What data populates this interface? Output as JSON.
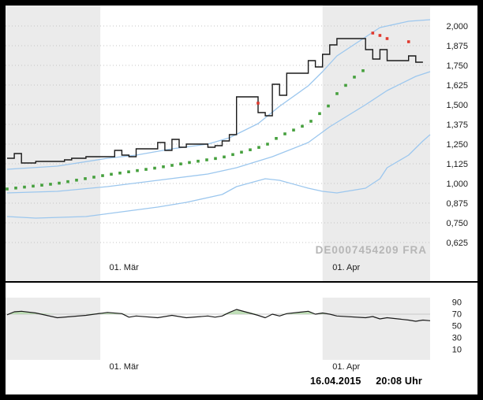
{
  "window": {
    "frame_color": "#000000",
    "background": "#ffffff"
  },
  "footer": {
    "date": "16.04.2015",
    "time": "20:08 Uhr"
  },
  "colors": {
    "month_band": "#ebebeb",
    "gridline": "#c6c6c6",
    "axis_text": "#1a1a1a",
    "watermark_text": "#b6b6b6",
    "threshold_line": "#c9c9c9"
  },
  "chart_data": [
    {
      "type": "line",
      "name": "price-panel",
      "title": "",
      "ylabel": "",
      "x_domain": [
        "2015-02-16",
        "2015-04-16"
      ],
      "x_tick_labels": [
        {
          "date": "2015-03-01",
          "label": "01. Mär"
        },
        {
          "date": "2015-04-01",
          "label": "01. Apr"
        }
      ],
      "y_ticks": [
        {
          "label": "2,000",
          "value": 2.0
        },
        {
          "label": "1,875",
          "value": 1.875
        },
        {
          "label": "1,750",
          "value": 1.75
        },
        {
          "label": "1,625",
          "value": 1.625
        },
        {
          "label": "1,500",
          "value": 1.5
        },
        {
          "label": "1,375",
          "value": 1.375
        },
        {
          "label": "1,250",
          "value": 1.25
        },
        {
          "label": "1,125",
          "value": 1.125
        },
        {
          "label": "1,000",
          "value": 1.0
        },
        {
          "label": "0,875",
          "value": 0.875
        },
        {
          "label": "0,750",
          "value": 0.75
        },
        {
          "label": "0,625",
          "value": 0.625
        }
      ],
      "month_bands": [
        {
          "from": "2015-02-16",
          "to": "2015-03-01"
        },
        {
          "from": "2015-04-01",
          "to": "2015-04-16"
        }
      ],
      "watermark": "DE0007454209 FRA",
      "series": [
        {
          "name": "bollinger-upper",
          "type": "line",
          "color": "#9cc7ee",
          "points": [
            [
              "2015-02-16",
              1.09
            ],
            [
              "2015-02-23",
              1.11
            ],
            [
              "2015-03-02",
              1.16
            ],
            [
              "2015-03-06",
              1.18
            ],
            [
              "2015-03-11",
              1.22
            ],
            [
              "2015-03-16",
              1.25
            ],
            [
              "2015-03-19",
              1.29
            ],
            [
              "2015-03-23",
              1.38
            ],
            [
              "2015-03-26",
              1.49
            ],
            [
              "2015-03-30",
              1.62
            ],
            [
              "2015-04-01",
              1.71
            ],
            [
              "2015-04-03",
              1.81
            ],
            [
              "2015-04-07",
              1.93
            ],
            [
              "2015-04-09",
              1.99
            ],
            [
              "2015-04-13",
              2.03
            ],
            [
              "2015-04-16",
              2.04
            ]
          ]
        },
        {
          "name": "bollinger-middle",
          "type": "line",
          "color": "#9cc7ee",
          "points": [
            [
              "2015-02-16",
              0.94
            ],
            [
              "2015-02-23",
              0.95
            ],
            [
              "2015-03-02",
              0.98
            ],
            [
              "2015-03-09",
              1.02
            ],
            [
              "2015-03-16",
              1.06
            ],
            [
              "2015-03-20",
              1.1
            ],
            [
              "2015-03-25",
              1.17
            ],
            [
              "2015-03-30",
              1.26
            ],
            [
              "2015-04-02",
              1.36
            ],
            [
              "2015-04-07",
              1.5
            ],
            [
              "2015-04-10",
              1.59
            ],
            [
              "2015-04-14",
              1.68
            ],
            [
              "2015-04-16",
              1.71
            ]
          ]
        },
        {
          "name": "bollinger-lower",
          "type": "line",
          "color": "#9cc7ee",
          "points": [
            [
              "2015-02-16",
              0.79
            ],
            [
              "2015-02-20",
              0.78
            ],
            [
              "2015-02-27",
              0.79
            ],
            [
              "2015-03-04",
              0.82
            ],
            [
              "2015-03-09",
              0.85
            ],
            [
              "2015-03-13",
              0.88
            ],
            [
              "2015-03-18",
              0.93
            ],
            [
              "2015-03-20",
              0.98
            ],
            [
              "2015-03-24",
              1.03
            ],
            [
              "2015-03-26",
              1.02
            ],
            [
              "2015-03-30",
              0.97
            ],
            [
              "2015-04-01",
              0.95
            ],
            [
              "2015-04-03",
              0.94
            ],
            [
              "2015-04-07",
              0.97
            ],
            [
              "2015-04-09",
              1.03
            ],
            [
              "2015-04-10",
              1.1
            ],
            [
              "2015-04-13",
              1.18
            ],
            [
              "2015-04-15",
              1.27
            ],
            [
              "2015-04-16",
              1.31
            ]
          ]
        },
        {
          "name": "ma-dotted",
          "type": "dotted",
          "color": "#45a03d",
          "points": [
            [
              "2015-02-16",
              0.965
            ],
            [
              "2015-02-23",
              1.0
            ],
            [
              "2015-03-02",
              1.055
            ],
            [
              "2015-03-09",
              1.1
            ],
            [
              "2015-03-13",
              1.13
            ],
            [
              "2015-03-18",
              1.165
            ],
            [
              "2015-03-20",
              1.19
            ],
            [
              "2015-03-24",
              1.24
            ],
            [
              "2015-03-26",
              1.3
            ],
            [
              "2015-03-30",
              1.38
            ],
            [
              "2015-03-31",
              1.42
            ],
            [
              "2015-04-02",
              1.5
            ],
            [
              "2015-04-03",
              1.57
            ],
            [
              "2015-04-06",
              1.7
            ],
            [
              "2015-04-07",
              1.725
            ]
          ]
        },
        {
          "name": "price",
          "type": "step",
          "color": "#1a1a1a",
          "points": [
            [
              "2015-02-16",
              1.16
            ],
            [
              "2015-02-17",
              1.19
            ],
            [
              "2015-02-18",
              1.13
            ],
            [
              "2015-02-19",
              1.13
            ],
            [
              "2015-02-20",
              1.14
            ],
            [
              "2015-02-23",
              1.14
            ],
            [
              "2015-02-24",
              1.15
            ],
            [
              "2015-02-25",
              1.16
            ],
            [
              "2015-02-26",
              1.16
            ],
            [
              "2015-02-27",
              1.17
            ],
            [
              "2015-03-02",
              1.17
            ],
            [
              "2015-03-03",
              1.21
            ],
            [
              "2015-03-04",
              1.18
            ],
            [
              "2015-03-05",
              1.17
            ],
            [
              "2015-03-06",
              1.22
            ],
            [
              "2015-03-09",
              1.26
            ],
            [
              "2015-03-10",
              1.21
            ],
            [
              "2015-03-11",
              1.28
            ],
            [
              "2015-03-12",
              1.23
            ],
            [
              "2015-03-13",
              1.25
            ],
            [
              "2015-03-16",
              1.23
            ],
            [
              "2015-03-17",
              1.24
            ],
            [
              "2015-03-18",
              1.27
            ],
            [
              "2015-03-19",
              1.31
            ],
            [
              "2015-03-20",
              1.55
            ],
            [
              "2015-03-23",
              1.45
            ],
            [
              "2015-03-24",
              1.43
            ],
            [
              "2015-03-25",
              1.63
            ],
            [
              "2015-03-26",
              1.56
            ],
            [
              "2015-03-27",
              1.7
            ],
            [
              "2015-03-30",
              1.78
            ],
            [
              "2015-03-31",
              1.74
            ],
            [
              "2015-04-01",
              1.82
            ],
            [
              "2015-04-02",
              1.88
            ],
            [
              "2015-04-03",
              1.92
            ],
            [
              "2015-04-07",
              1.85
            ],
            [
              "2015-04-08",
              1.79
            ],
            [
              "2015-04-09",
              1.85
            ],
            [
              "2015-04-10",
              1.78
            ],
            [
              "2015-04-13",
              1.81
            ],
            [
              "2015-04-14",
              1.77
            ],
            [
              "2015-04-15",
              1.77
            ]
          ]
        },
        {
          "name": "signal-dots",
          "type": "markers",
          "color": "#e03a2f",
          "points": [
            [
              "2015-03-23",
              1.51
            ],
            [
              "2015-04-08",
              1.955
            ],
            [
              "2015-04-09",
              1.94
            ],
            [
              "2015-04-10",
              1.92
            ],
            [
              "2015-04-13",
              1.9
            ]
          ]
        }
      ]
    },
    {
      "type": "line",
      "name": "indicator-panel",
      "title": "",
      "x_domain": [
        "2015-02-16",
        "2015-04-16"
      ],
      "x_tick_labels": [
        {
          "date": "2015-03-01",
          "label": "01. Mär"
        },
        {
          "date": "2015-04-01",
          "label": "01. Apr"
        }
      ],
      "y_ticks": [
        {
          "label": "90",
          "value": 90
        },
        {
          "label": "70",
          "value": 70
        },
        {
          "label": "50",
          "value": 50
        },
        {
          "label": "30",
          "value": 30
        },
        {
          "label": "10",
          "value": 10
        }
      ],
      "month_bands": [
        {
          "from": "2015-02-16",
          "to": "2015-03-01"
        },
        {
          "from": "2015-04-01",
          "to": "2015-04-16"
        }
      ],
      "threshold": 70,
      "series": [
        {
          "name": "momentum",
          "type": "area-line",
          "color": "#1a1a1a",
          "fill": "#b9dcb0",
          "points": [
            [
              "2015-02-16",
              69
            ],
            [
              "2015-02-17",
              74
            ],
            [
              "2015-02-18",
              75
            ],
            [
              "2015-02-20",
              72
            ],
            [
              "2015-02-23",
              64
            ],
            [
              "2015-02-25",
              66
            ],
            [
              "2015-02-27",
              68
            ],
            [
              "2015-03-02",
              73
            ],
            [
              "2015-03-04",
              71
            ],
            [
              "2015-03-05",
              65
            ],
            [
              "2015-03-06",
              67
            ],
            [
              "2015-03-09",
              64
            ],
            [
              "2015-03-11",
              68
            ],
            [
              "2015-03-12",
              66
            ],
            [
              "2015-03-13",
              64
            ],
            [
              "2015-03-16",
              67
            ],
            [
              "2015-03-17",
              65
            ],
            [
              "2015-03-18",
              67
            ],
            [
              "2015-03-19",
              73
            ],
            [
              "2015-03-20",
              78
            ],
            [
              "2015-03-23",
              68
            ],
            [
              "2015-03-24",
              64
            ],
            [
              "2015-03-25",
              70
            ],
            [
              "2015-03-26",
              67
            ],
            [
              "2015-03-27",
              71
            ],
            [
              "2015-03-30",
              75
            ],
            [
              "2015-03-31",
              70
            ],
            [
              "2015-04-01",
              72
            ],
            [
              "2015-04-02",
              70
            ],
            [
              "2015-04-03",
              67
            ],
            [
              "2015-04-07",
              64
            ],
            [
              "2015-04-08",
              66
            ],
            [
              "2015-04-09",
              62
            ],
            [
              "2015-04-10",
              64
            ],
            [
              "2015-04-13",
              60
            ],
            [
              "2015-04-14",
              58
            ],
            [
              "2015-04-15",
              60
            ],
            [
              "2015-04-16",
              59
            ]
          ]
        }
      ]
    }
  ]
}
